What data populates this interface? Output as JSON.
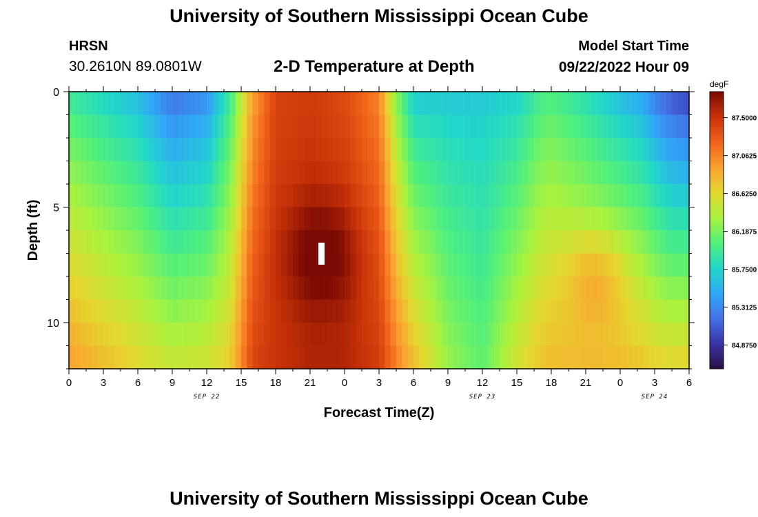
{
  "header": {
    "title": "University of Southern Mississippi Ocean Cube",
    "station": "HRSN",
    "coordinates": "30.2610N  89.0801W",
    "model_start_label": "Model Start Time",
    "model_start_value": "09/22/2022 Hour 09"
  },
  "footer": {
    "title": "University of Southern Mississippi Ocean Cube"
  },
  "chart_data": {
    "type": "heatmap",
    "title": "2-D Temperature at Depth",
    "xlabel": "Forecast Time(Z)",
    "ylabel": "Depth (ft)",
    "x_range_hours": [
      0,
      54
    ],
    "y_range_ft": [
      0,
      12
    ],
    "x_tick_labels": [
      "0",
      "3",
      "6",
      "9",
      "12",
      "15",
      "18",
      "21",
      "0",
      "3",
      "6",
      "9",
      "12",
      "15",
      "18",
      "21",
      "0",
      "3",
      "6"
    ],
    "y_tick_labels": [
      "0",
      "5",
      "10"
    ],
    "date_labels": [
      {
        "text": "SEP 22",
        "hour": 12
      },
      {
        "text": "SEP 23",
        "hour": 36
      },
      {
        "text": "SEP 24",
        "hour": 51
      }
    ],
    "colorbar": {
      "unit": "degF",
      "min": 84.6,
      "max": 87.8,
      "ticks": [
        "87.5000",
        "87.0625",
        "86.6250",
        "86.1875",
        "85.7500",
        "85.3125",
        "84.8750"
      ],
      "colors": [
        "#2b1045",
        "#3a35a8",
        "#4472e8",
        "#2fa9f5",
        "#22d8c7",
        "#52f07a",
        "#a8f23e",
        "#e4d82f",
        "#fba130",
        "#f0621a",
        "#c93208",
        "#7a0a03"
      ]
    }
  }
}
